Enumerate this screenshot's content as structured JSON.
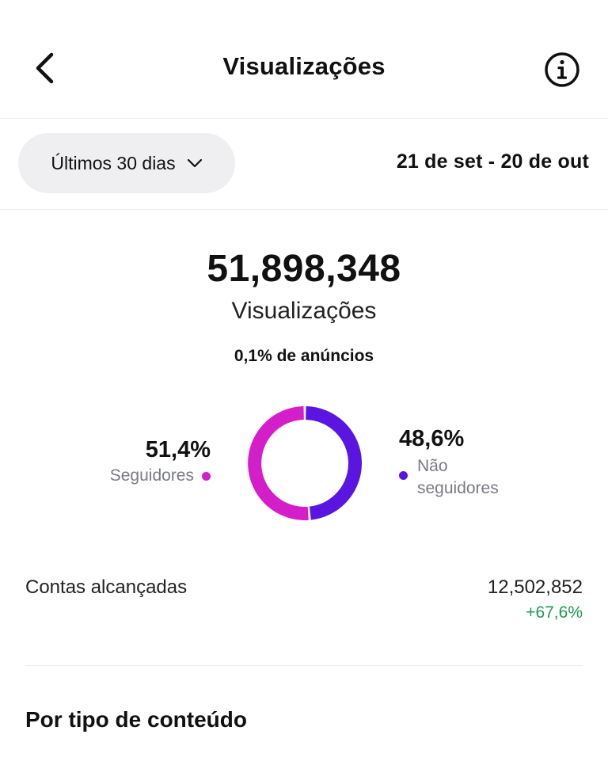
{
  "header": {
    "title": "Visualizações",
    "back_icon": "chevron-left-icon",
    "info_icon": "info-circle-icon"
  },
  "filter": {
    "period_label": "Últimos 30 dias",
    "dropdown_icon": "chevron-down-icon",
    "date_range": "21 de set - 20 de out"
  },
  "summary": {
    "total": "51,898,348",
    "total_label": "Visualizações",
    "ads_share": "0,1% de anúncios"
  },
  "audience": {
    "followers": {
      "percent": "51,4%",
      "label": "Seguidores",
      "value": 51.4,
      "color": "#d41ec9"
    },
    "non_followers": {
      "percent": "48,6%",
      "label_line1": "Não",
      "label_line2": "seguidores",
      "value": 48.6,
      "color": "#5a16e0"
    }
  },
  "metrics": {
    "accounts_reached": {
      "label": "Contas alcançadas",
      "value": "12,502,852",
      "delta": "+67,6%"
    }
  },
  "section": {
    "title": "Por tipo de conteúdo"
  }
}
